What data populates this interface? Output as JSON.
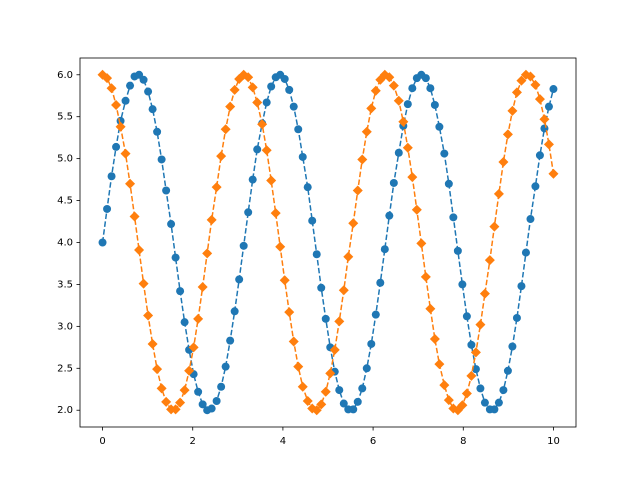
{
  "chart_data": {
    "type": "line",
    "x": [
      0,
      0.1,
      0.2,
      0.3,
      0.4,
      0.51,
      0.61,
      0.71,
      0.81,
      0.91,
      1.01,
      1.11,
      1.21,
      1.31,
      1.41,
      1.52,
      1.62,
      1.72,
      1.82,
      1.92,
      2.02,
      2.12,
      2.22,
      2.32,
      2.42,
      2.53,
      2.63,
      2.73,
      2.83,
      2.93,
      3.03,
      3.13,
      3.23,
      3.33,
      3.43,
      3.54,
      3.64,
      3.74,
      3.84,
      3.94,
      4.04,
      4.14,
      4.24,
      4.34,
      4.44,
      4.55,
      4.65,
      4.75,
      4.85,
      4.95,
      5.05,
      5.15,
      5.25,
      5.35,
      5.45,
      5.56,
      5.66,
      5.76,
      5.86,
      5.96,
      6.06,
      6.16,
      6.26,
      6.36,
      6.46,
      6.57,
      6.67,
      6.77,
      6.87,
      6.97,
      7.07,
      7.17,
      7.27,
      7.37,
      7.47,
      7.58,
      7.68,
      7.78,
      7.88,
      7.98,
      8.08,
      8.18,
      8.28,
      8.38,
      8.48,
      8.59,
      8.69,
      8.79,
      8.89,
      8.99,
      9.09,
      9.19,
      9.29,
      9.39,
      9.49,
      9.6,
      9.7,
      9.8,
      9.9,
      10
    ],
    "series": [
      {
        "color": "#1f77b4",
        "marker": "circle",
        "linestyle": "dashed",
        "values": [
          4.0,
          4.4,
          4.79,
          5.14,
          5.45,
          5.69,
          5.87,
          5.98,
          6.0,
          5.94,
          5.8,
          5.59,
          5.32,
          4.99,
          4.62,
          4.22,
          3.82,
          3.42,
          3.05,
          2.72,
          2.43,
          2.22,
          2.07,
          2.0,
          2.02,
          2.11,
          2.28,
          2.52,
          2.83,
          3.18,
          3.56,
          3.96,
          4.36,
          4.75,
          5.11,
          5.42,
          5.67,
          5.86,
          5.97,
          6.0,
          5.95,
          5.82,
          5.62,
          5.35,
          5.02,
          4.66,
          4.26,
          3.86,
          3.46,
          3.09,
          2.75,
          2.46,
          2.24,
          2.08,
          2.01,
          2.01,
          2.1,
          2.26,
          2.5,
          2.79,
          3.14,
          3.52,
          3.92,
          4.32,
          4.71,
          5.07,
          5.39,
          5.65,
          5.84,
          5.96,
          6.0,
          5.96,
          5.84,
          5.64,
          5.38,
          5.06,
          4.7,
          4.3,
          3.9,
          3.5,
          3.12,
          2.78,
          2.49,
          2.26,
          2.09,
          2.01,
          2.01,
          2.09,
          2.24,
          2.47,
          2.76,
          3.1,
          3.48,
          3.88,
          4.28,
          4.67,
          5.04,
          5.36,
          5.62,
          5.83
        ]
      },
      {
        "color": "#ff7f0e",
        "marker": "diamond",
        "linestyle": "dashed",
        "values": [
          6.0,
          5.96,
          5.84,
          5.64,
          5.38,
          5.06,
          4.7,
          4.31,
          3.91,
          3.51,
          3.13,
          2.79,
          2.49,
          2.26,
          2.1,
          2.01,
          2.01,
          2.09,
          2.24,
          2.47,
          2.75,
          3.09,
          3.47,
          3.87,
          4.27,
          4.66,
          5.03,
          5.35,
          5.62,
          5.82,
          5.95,
          6.0,
          5.97,
          5.85,
          5.67,
          5.41,
          5.1,
          4.74,
          4.35,
          3.95,
          3.55,
          3.17,
          2.82,
          2.52,
          2.28,
          2.11,
          2.02,
          2.0,
          2.07,
          2.22,
          2.44,
          2.72,
          3.06,
          3.43,
          3.83,
          4.23,
          4.62,
          4.99,
          5.32,
          5.6,
          5.81,
          5.94,
          6.0,
          5.97,
          5.87,
          5.69,
          5.44,
          5.13,
          4.78,
          4.39,
          3.99,
          3.59,
          3.21,
          2.85,
          2.55,
          2.3,
          2.12,
          2.02,
          2.0,
          2.06,
          2.2,
          2.41,
          2.69,
          3.02,
          3.39,
          3.79,
          4.19,
          4.58,
          4.96,
          5.29,
          5.57,
          5.79,
          5.93,
          6.0,
          5.98,
          5.88,
          5.71,
          5.47,
          5.17,
          4.82
        ]
      }
    ],
    "xlim": [
      -0.5,
      10.5
    ],
    "xticks": [
      0,
      2,
      4,
      6,
      8,
      10
    ],
    "ylim": [
      1.8,
      6.2
    ],
    "yticks": [
      {
        "value": 2,
        "label": "2.0"
      },
      {
        "value": 2.5,
        "label": "2.5"
      },
      {
        "value": 3,
        "label": "3.0"
      },
      {
        "value": 3.5,
        "label": "3.5"
      },
      {
        "value": 4,
        "label": "4.0"
      },
      {
        "value": 4.5,
        "label": "4.5"
      },
      {
        "value": 5,
        "label": "5.0"
      },
      {
        "value": 5.5,
        "label": "5.5"
      },
      {
        "value": 6,
        "label": "6.0"
      }
    ],
    "grid": false
  }
}
